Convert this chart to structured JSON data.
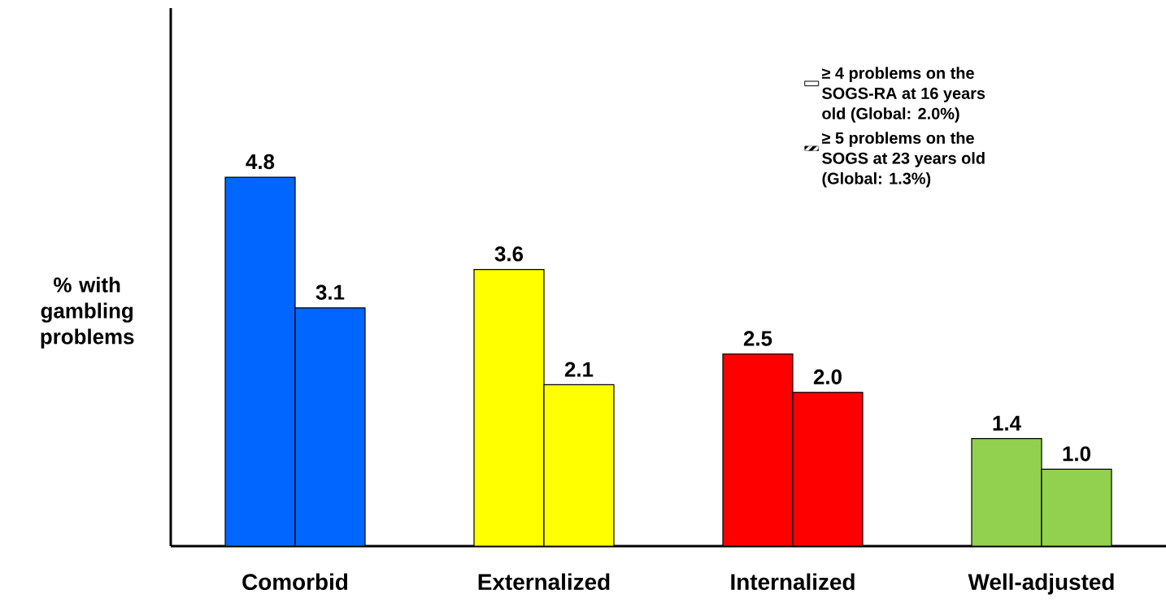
{
  "chart_data": {
    "type": "bar",
    "ylabel": "% with gambling problems",
    "categories": [
      "Comorbid",
      "Externalized",
      "Internalized",
      "Well-adjusted"
    ],
    "series": [
      {
        "name": "≥ 4 problems on the SOGS-RA at 16 years old (Global: 2.0%)",
        "colors": [
          "#0066ff",
          "#ffff00",
          "#ff0000",
          "#92d050"
        ],
        "values": [
          4.8,
          3.6,
          2.5,
          1.4
        ],
        "value_labels": [
          "4.8",
          "3.6",
          "2.5",
          "1.4"
        ]
      },
      {
        "name": "≥ 5 problems on the SOGS at 23 years old (Global: 1.3%)",
        "colors": [
          "#0066ff",
          "#ffff00",
          "#ff0000",
          "#92d050"
        ],
        "values": [
          3.1,
          2.1,
          2.0,
          1.0
        ],
        "value_labels": [
          "3.1",
          "2.1",
          "2.0",
          "1.0"
        ]
      }
    ],
    "ylim": [
      0,
      7
    ],
    "legend": "top right"
  }
}
